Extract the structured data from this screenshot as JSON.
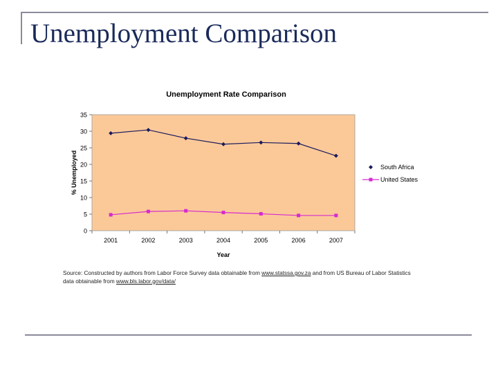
{
  "slide": {
    "title": "Unemployment Comparison"
  },
  "source": {
    "prefix": "Source: Constructed by authors from Labor Force Survey data obtainable from ",
    "link1": "www.statssa.gov.za",
    "middle": " and from US Bureau of Labor Statistics data obtainable from ",
    "link2": "www.bls.labor.gov/data/"
  },
  "colors": {
    "plot_background": "#fbc998",
    "south_africa": "#1a1a5e",
    "united_states": "#d62ad0",
    "slide_title": "#1a2a5a"
  },
  "chart_data": {
    "type": "line",
    "title": "Unemployment Rate Comparison",
    "xlabel": "Year",
    "ylabel": "% Unemployed",
    "categories": [
      "2001",
      "2002",
      "2003",
      "2004",
      "2005",
      "2006",
      "2007"
    ],
    "series": [
      {
        "name": "South Africa",
        "marker": "diamond",
        "values": [
          29.4,
          30.4,
          27.9,
          26.1,
          26.6,
          26.3,
          22.6
        ]
      },
      {
        "name": "United States",
        "marker": "square",
        "values": [
          4.8,
          5.8,
          6.0,
          5.5,
          5.1,
          4.6,
          4.6
        ]
      }
    ],
    "ylim": [
      0,
      35
    ],
    "yticks": [
      0,
      5,
      10,
      15,
      20,
      25,
      30,
      35
    ],
    "legend": "right",
    "grid": false
  }
}
